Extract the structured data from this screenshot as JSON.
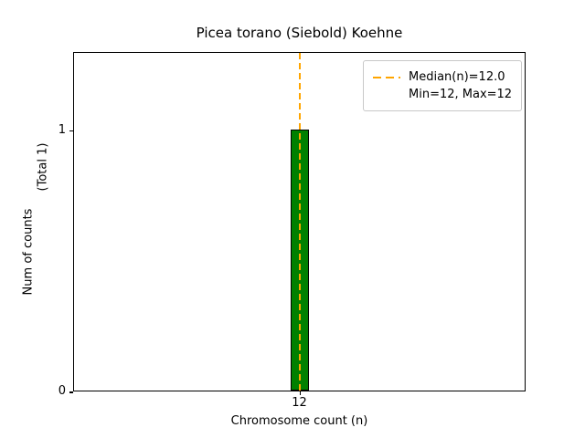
{
  "chart_data": {
    "type": "bar",
    "title": "Picea torano (Siebold) Koehne",
    "xlabel": "Chromosome count (n)",
    "ylabel": "Num of counts",
    "ylabel_note": "(Total 1)",
    "categories": [
      "12"
    ],
    "values": [
      1
    ],
    "yticks": [
      0,
      1
    ],
    "ylim": [
      0,
      1.3
    ],
    "bar_color": "#008000",
    "bar_edge_color": "#000000",
    "median": 12.0,
    "median_line_color": "#ffa500",
    "grid": "off",
    "legend": {
      "position": "upper right",
      "entries": [
        {
          "label": "Median(n)=12.0",
          "sample": "dashed-orange"
        },
        {
          "label": "Min=12, Max=12",
          "sample": "none"
        }
      ]
    }
  }
}
